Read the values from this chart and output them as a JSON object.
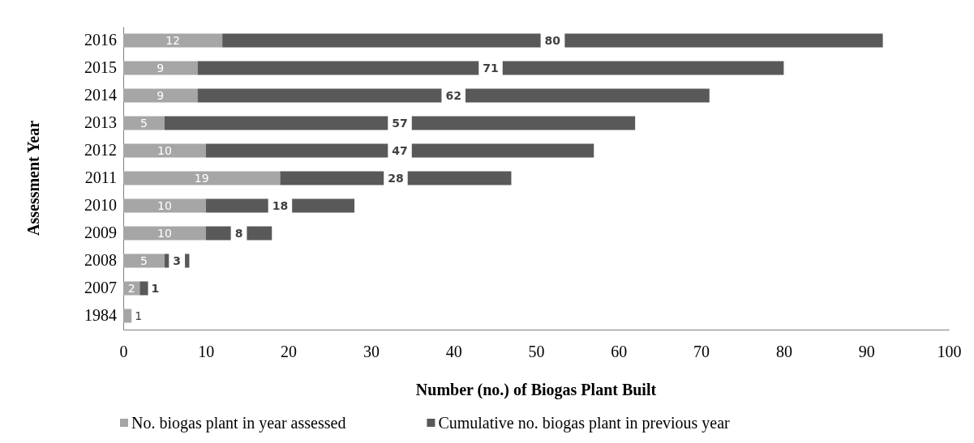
{
  "chart_data": {
    "type": "bar",
    "orientation": "horizontal",
    "stacked": true,
    "xlabel": "Number (no.) of Biogas Plant Built",
    "ylabel": "Assessment Year",
    "categories": [
      "2016",
      "2015",
      "2014",
      "2013",
      "2012",
      "2011",
      "2010",
      "2009",
      "2008",
      "2007",
      "1984"
    ],
    "series": [
      {
        "name": "No. biogas plant in year assessed",
        "color": "#a6a6a6",
        "values": [
          12,
          9,
          9,
          5,
          10,
          19,
          10,
          10,
          5,
          2,
          1
        ]
      },
      {
        "name": "Cumulative no. biogas plant in previous year",
        "color": "#595959",
        "values": [
          80,
          71,
          62,
          57,
          47,
          28,
          18,
          8,
          3,
          1,
          null
        ]
      }
    ],
    "xlim": [
      0,
      100
    ],
    "xticks": [
      0,
      10,
      20,
      30,
      40,
      50,
      60,
      70,
      80,
      90,
      100
    ],
    "data_labels": true,
    "legend": "bottom"
  }
}
